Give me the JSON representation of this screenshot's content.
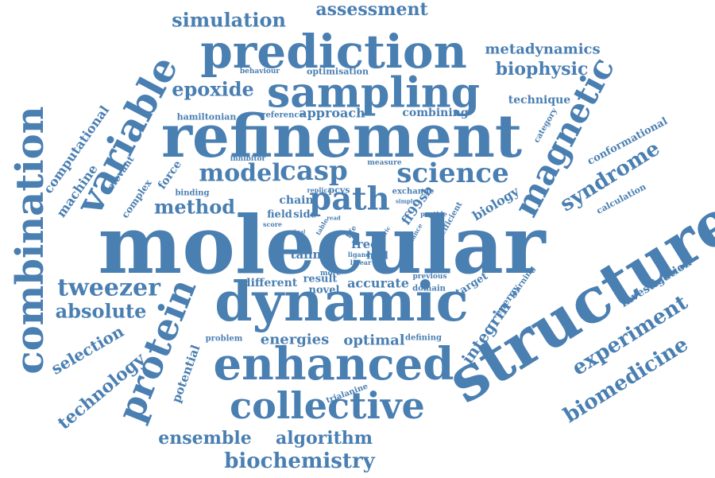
{
  "accent_color": "#4a7fb2",
  "background_color": "#ffffff",
  "words": [
    {
      "text": "molecular"
    },
    {
      "text": "structure"
    },
    {
      "text": "refinement"
    },
    {
      "text": "dynamic"
    },
    {
      "text": "prediction"
    },
    {
      "text": "sampling"
    },
    {
      "text": "enhanced"
    },
    {
      "text": "combination"
    },
    {
      "text": "collective"
    },
    {
      "text": "variable"
    },
    {
      "text": "protein"
    },
    {
      "text": "magnetic"
    },
    {
      "text": "path"
    },
    {
      "text": "science"
    },
    {
      "text": "casp"
    },
    {
      "text": "model"
    },
    {
      "text": "method"
    },
    {
      "text": "tweezer"
    },
    {
      "text": "absolute"
    },
    {
      "text": "simulation"
    },
    {
      "text": "assessment"
    },
    {
      "text": "epoxide"
    },
    {
      "text": "biochemistry"
    },
    {
      "text": "ensemble"
    },
    {
      "text": "algorithm"
    },
    {
      "text": "experiment"
    },
    {
      "text": "biomedicine"
    },
    {
      "text": "syndrome"
    },
    {
      "text": "technology"
    },
    {
      "text": "selection"
    },
    {
      "text": "metadynamics"
    },
    {
      "text": "biophysic"
    },
    {
      "text": "technique"
    },
    {
      "text": "investigation"
    },
    {
      "text": "integrin"
    },
    {
      "text": "potential"
    },
    {
      "text": "energies"
    },
    {
      "text": "optimal"
    },
    {
      "text": "accurate"
    },
    {
      "text": "different"
    },
    {
      "text": "result"
    },
    {
      "text": "novel"
    },
    {
      "text": "biology"
    },
    {
      "text": "computational"
    },
    {
      "text": "machine"
    },
    {
      "text": "relevant"
    },
    {
      "text": "complex"
    },
    {
      "text": "force"
    },
    {
      "text": "approach"
    },
    {
      "text": "combining"
    },
    {
      "text": "hamiltonian"
    },
    {
      "text": "reference"
    },
    {
      "text": "behaviour"
    },
    {
      "text": "optimisation"
    },
    {
      "text": "conformational"
    },
    {
      "text": "calculation"
    },
    {
      "text": "category"
    },
    {
      "text": "chain"
    },
    {
      "text": "field"
    },
    {
      "text": "side"
    },
    {
      "text": "free"
    },
    {
      "text": "talin"
    },
    {
      "text": "hall"
    },
    {
      "text": "ff99sb"
    },
    {
      "text": "pcvs"
    },
    {
      "text": "exchange"
    },
    {
      "text": "replica"
    },
    {
      "text": "inhibitor"
    },
    {
      "text": "measure"
    },
    {
      "text": "binding"
    },
    {
      "text": "problem"
    },
    {
      "text": "defining"
    },
    {
      "text": "domain"
    },
    {
      "text": "previous"
    },
    {
      "text": "more"
    },
    {
      "text": "target"
    },
    {
      "text": "energy"
    },
    {
      "text": "learning"
    },
    {
      "text": "efficient"
    },
    {
      "text": "peptide"
    },
    {
      "text": "distance"
    },
    {
      "text": "ligand"
    },
    {
      "text": "linear"
    },
    {
      "text": "metric"
    },
    {
      "text": "life"
    },
    {
      "text": "trialanine"
    },
    {
      "text": "score"
    },
    {
      "text": "read"
    },
    {
      "text": "table"
    },
    {
      "text": "simple"
    },
    {
      "text": "final"
    }
  ]
}
